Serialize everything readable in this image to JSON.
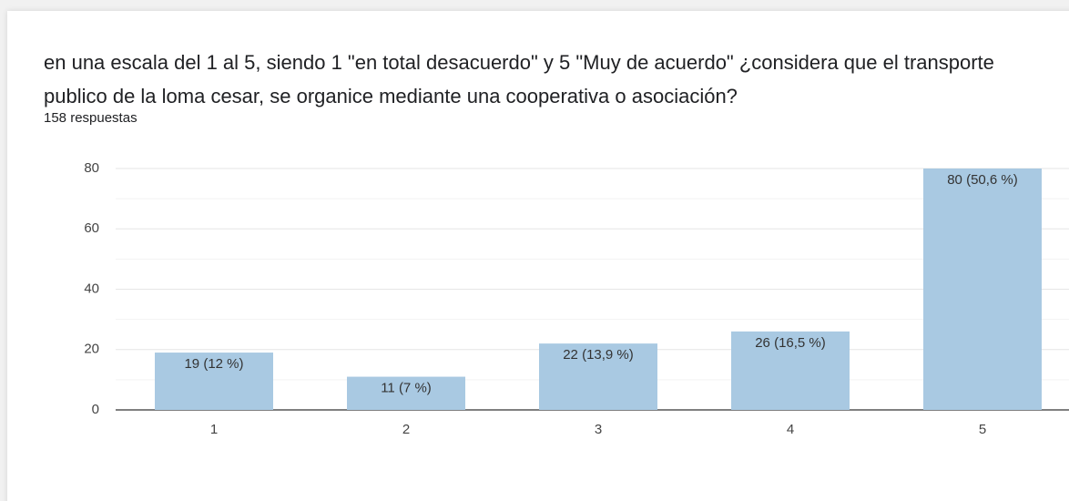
{
  "chart_data": {
    "type": "bar",
    "title": "en una escala del 1 al 5, siendo 1  \"en total desacuerdo\" y 5 \"Muy de acuerdo\" ¿considera que el transporte publico de la loma cesar, se organice mediante una cooperativa o asociación?",
    "subtitle": "158 respuestas",
    "categories": [
      "1",
      "2",
      "3",
      "4",
      "5"
    ],
    "values": [
      19,
      11,
      22,
      26,
      80
    ],
    "value_labels": [
      "19 (12 %)",
      "11 (7 %)",
      "22 (13,9 %)",
      "26 (16,5 %)",
      "80 (50,6 %)"
    ],
    "color": "#a9c9e2",
    "ylim": [
      0,
      80
    ],
    "yticks": [
      0,
      20,
      40,
      60,
      80
    ],
    "minor_yticks": [
      10,
      30,
      50,
      70
    ],
    "grid": true
  }
}
